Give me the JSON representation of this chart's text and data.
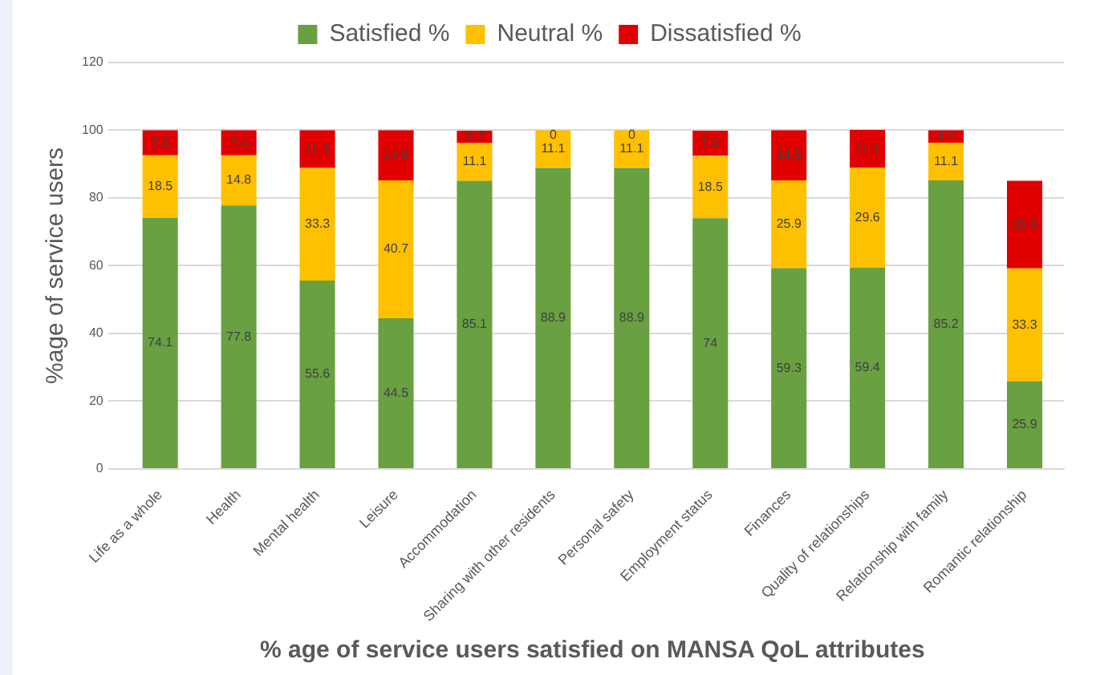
{
  "chart_data": {
    "type": "bar",
    "stacked": true,
    "xlabel": "% age of service users satisfied on MANSA QoL attributes",
    "ylabel": "%age of service users",
    "categories": [
      "Life as a whole",
      "Health",
      "Mental health",
      "Leisure",
      "Accommodation",
      "Sharing with other residents",
      "Personal safety",
      "Employment status",
      "Finances",
      "Quality of relationships",
      "Relationship with family",
      "Romantic relationship"
    ],
    "series": [
      {
        "name": "Satisfied %",
        "color": "#69a042",
        "values": [
          74.1,
          77.8,
          55.6,
          44.5,
          85.1,
          88.9,
          88.9,
          74,
          59.3,
          59.4,
          85.2,
          25.9
        ]
      },
      {
        "name": "Neutral %",
        "color": "#ffc000",
        "values": [
          18.5,
          14.8,
          33.3,
          40.7,
          11.1,
          11.1,
          11.1,
          18.5,
          25.9,
          29.6,
          11.1,
          33.3
        ]
      },
      {
        "name": "Dissatisfied %",
        "color": "#e00000",
        "values": [
          7.4,
          7.4,
          11.1,
          14.8,
          3.7,
          0,
          0,
          7.4,
          14.8,
          11.1,
          3.7,
          25.9
        ]
      }
    ],
    "ylim": [
      0,
      120
    ],
    "yticks": [
      0,
      20,
      40,
      60,
      80,
      100,
      120
    ],
    "grid": "y",
    "legend": "top",
    "data_labels": true
  }
}
